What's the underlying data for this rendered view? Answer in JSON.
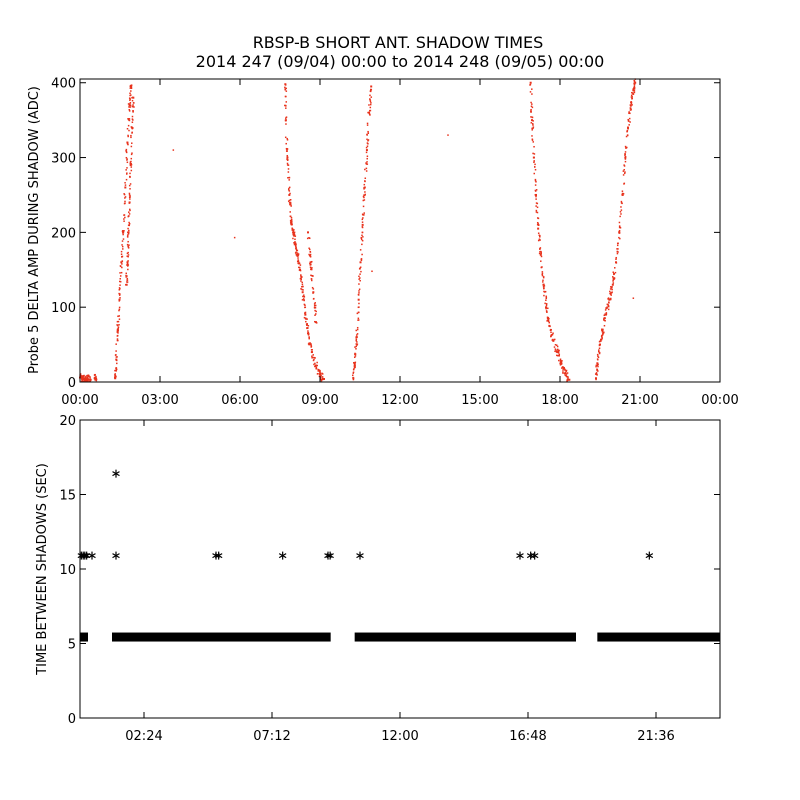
{
  "figure": {
    "title_line1": "RBSP-B SHORT ANT. SHADOW TIMES",
    "title_line2": "2014 247 (09/04) 00:00 to 2014 248 (09/05) 00:00"
  },
  "colors": {
    "top_points": "#e8321c",
    "bottom_points": "#000000",
    "axes": "#000000"
  },
  "chart_data": [
    {
      "type": "scatter",
      "ylabel": "Probe 5 DELTA AMP DURING SHADOW (ADC)",
      "xlabel": "",
      "x_unit": "hours",
      "xlim": [
        0,
        24
      ],
      "ylim": [
        0,
        405
      ],
      "xticks": [
        0,
        3,
        6,
        9,
        12,
        15,
        18,
        21,
        24
      ],
      "xtick_labels": [
        "00:00",
        "03:00",
        "06:00",
        "09:00",
        "12:00",
        "15:00",
        "18:00",
        "21:00",
        "00:00"
      ],
      "yticks": [
        0,
        100,
        200,
        300,
        400
      ],
      "ytick_labels": [
        "0",
        "100",
        "200",
        "300",
        "400"
      ],
      "grid": false,
      "color": "#e8321c",
      "segments": [
        {
          "x": [
            0.0,
            0.1,
            0.2,
            0.3,
            0.4
          ],
          "y": [
            6,
            5,
            4,
            3,
            3
          ]
        },
        {
          "x": [
            0.55,
            0.6
          ],
          "y": [
            5,
            4
          ]
        },
        {
          "x": [
            1.32,
            1.36,
            1.42,
            1.48,
            1.55,
            1.62,
            1.7,
            1.78,
            1.86,
            1.92
          ],
          "y": [
            5,
            30,
            70,
            110,
            160,
            200,
            260,
            320,
            370,
            395
          ]
        },
        {
          "x": [
            1.75,
            1.78,
            1.82,
            1.86,
            1.9,
            1.95,
            2.0
          ],
          "y": [
            130,
            160,
            200,
            240,
            290,
            340,
            380
          ]
        },
        {
          "x": [
            7.7,
            7.72,
            7.78,
            7.85,
            7.92,
            8.0,
            8.08,
            8.15,
            8.25,
            8.35,
            8.45,
            8.55,
            8.7,
            8.85,
            9.0,
            9.15
          ],
          "y": [
            398,
            350,
            300,
            250,
            215,
            200,
            185,
            170,
            150,
            120,
            90,
            65,
            40,
            22,
            10,
            4
          ]
        },
        {
          "x": [
            8.55,
            8.65,
            8.75,
            8.85
          ],
          "y": [
            200,
            160,
            120,
            80
          ]
        },
        {
          "x": [
            10.25,
            10.3,
            10.38,
            10.45,
            10.52,
            10.6,
            10.68,
            10.76,
            10.84,
            10.92
          ],
          "y": [
            5,
            25,
            60,
            110,
            160,
            210,
            260,
            310,
            360,
            395
          ]
        },
        {
          "x": [
            16.9,
            16.95,
            17.02,
            17.1,
            17.18,
            17.28,
            17.38,
            17.48,
            17.6,
            17.75,
            17.9,
            18.05,
            18.2,
            18.35
          ],
          "y": [
            400,
            350,
            300,
            250,
            205,
            170,
            130,
            100,
            75,
            55,
            40,
            25,
            12,
            3
          ]
        },
        {
          "x": [
            19.35,
            19.4,
            19.5,
            19.6,
            19.72,
            19.85,
            19.98,
            20.1,
            20.22,
            20.35,
            20.45,
            20.55,
            20.65,
            20.75,
            20.82
          ],
          "y": [
            5,
            25,
            50,
            70,
            90,
            110,
            130,
            160,
            200,
            250,
            300,
            340,
            370,
            390,
            400
          ]
        }
      ],
      "isolated_points": {
        "x": [
          1.95,
          3.5,
          5.8,
          10.95,
          13.8,
          20.75
        ],
        "y": [
          380,
          310,
          193,
          148,
          330,
          112
        ]
      }
    },
    {
      "type": "scatter",
      "ylabel": "TIME BETWEEN SHADOWS (SEC)",
      "xlabel": "",
      "x_unit": "hours",
      "xlim": [
        0,
        24
      ],
      "ylim": [
        0,
        20
      ],
      "xticks": [
        2.4,
        7.2,
        12.0,
        16.8,
        21.6
      ],
      "xtick_labels": [
        "02:24",
        "07:12",
        "12:00",
        "16:48",
        "21:36"
      ],
      "yticks": [
        0,
        5,
        10,
        15,
        20
      ],
      "ytick_labels": [
        "0",
        "5",
        "10",
        "15",
        "20"
      ],
      "grid": false,
      "color": "#000000",
      "dense_bands": [
        {
          "y": 5.4,
          "x_ranges": [
            [
              0.0,
              0.3
            ],
            [
              1.2,
              9.4
            ],
            [
              10.3,
              18.6
            ],
            [
              19.4,
              24.0
            ]
          ]
        }
      ],
      "points": {
        "x": [
          0.05,
          0.12,
          0.18,
          0.25,
          0.45,
          1.35,
          1.35,
          5.1,
          5.2,
          7.6,
          9.3,
          9.38,
          10.5,
          16.5,
          16.9,
          17.05,
          21.35
        ],
        "y": [
          10.9,
          10.9,
          10.9,
          10.9,
          10.9,
          16.4,
          10.9,
          10.9,
          10.9,
          10.9,
          10.9,
          10.9,
          10.9,
          10.9,
          10.9,
          10.9,
          10.9
        ]
      }
    }
  ]
}
